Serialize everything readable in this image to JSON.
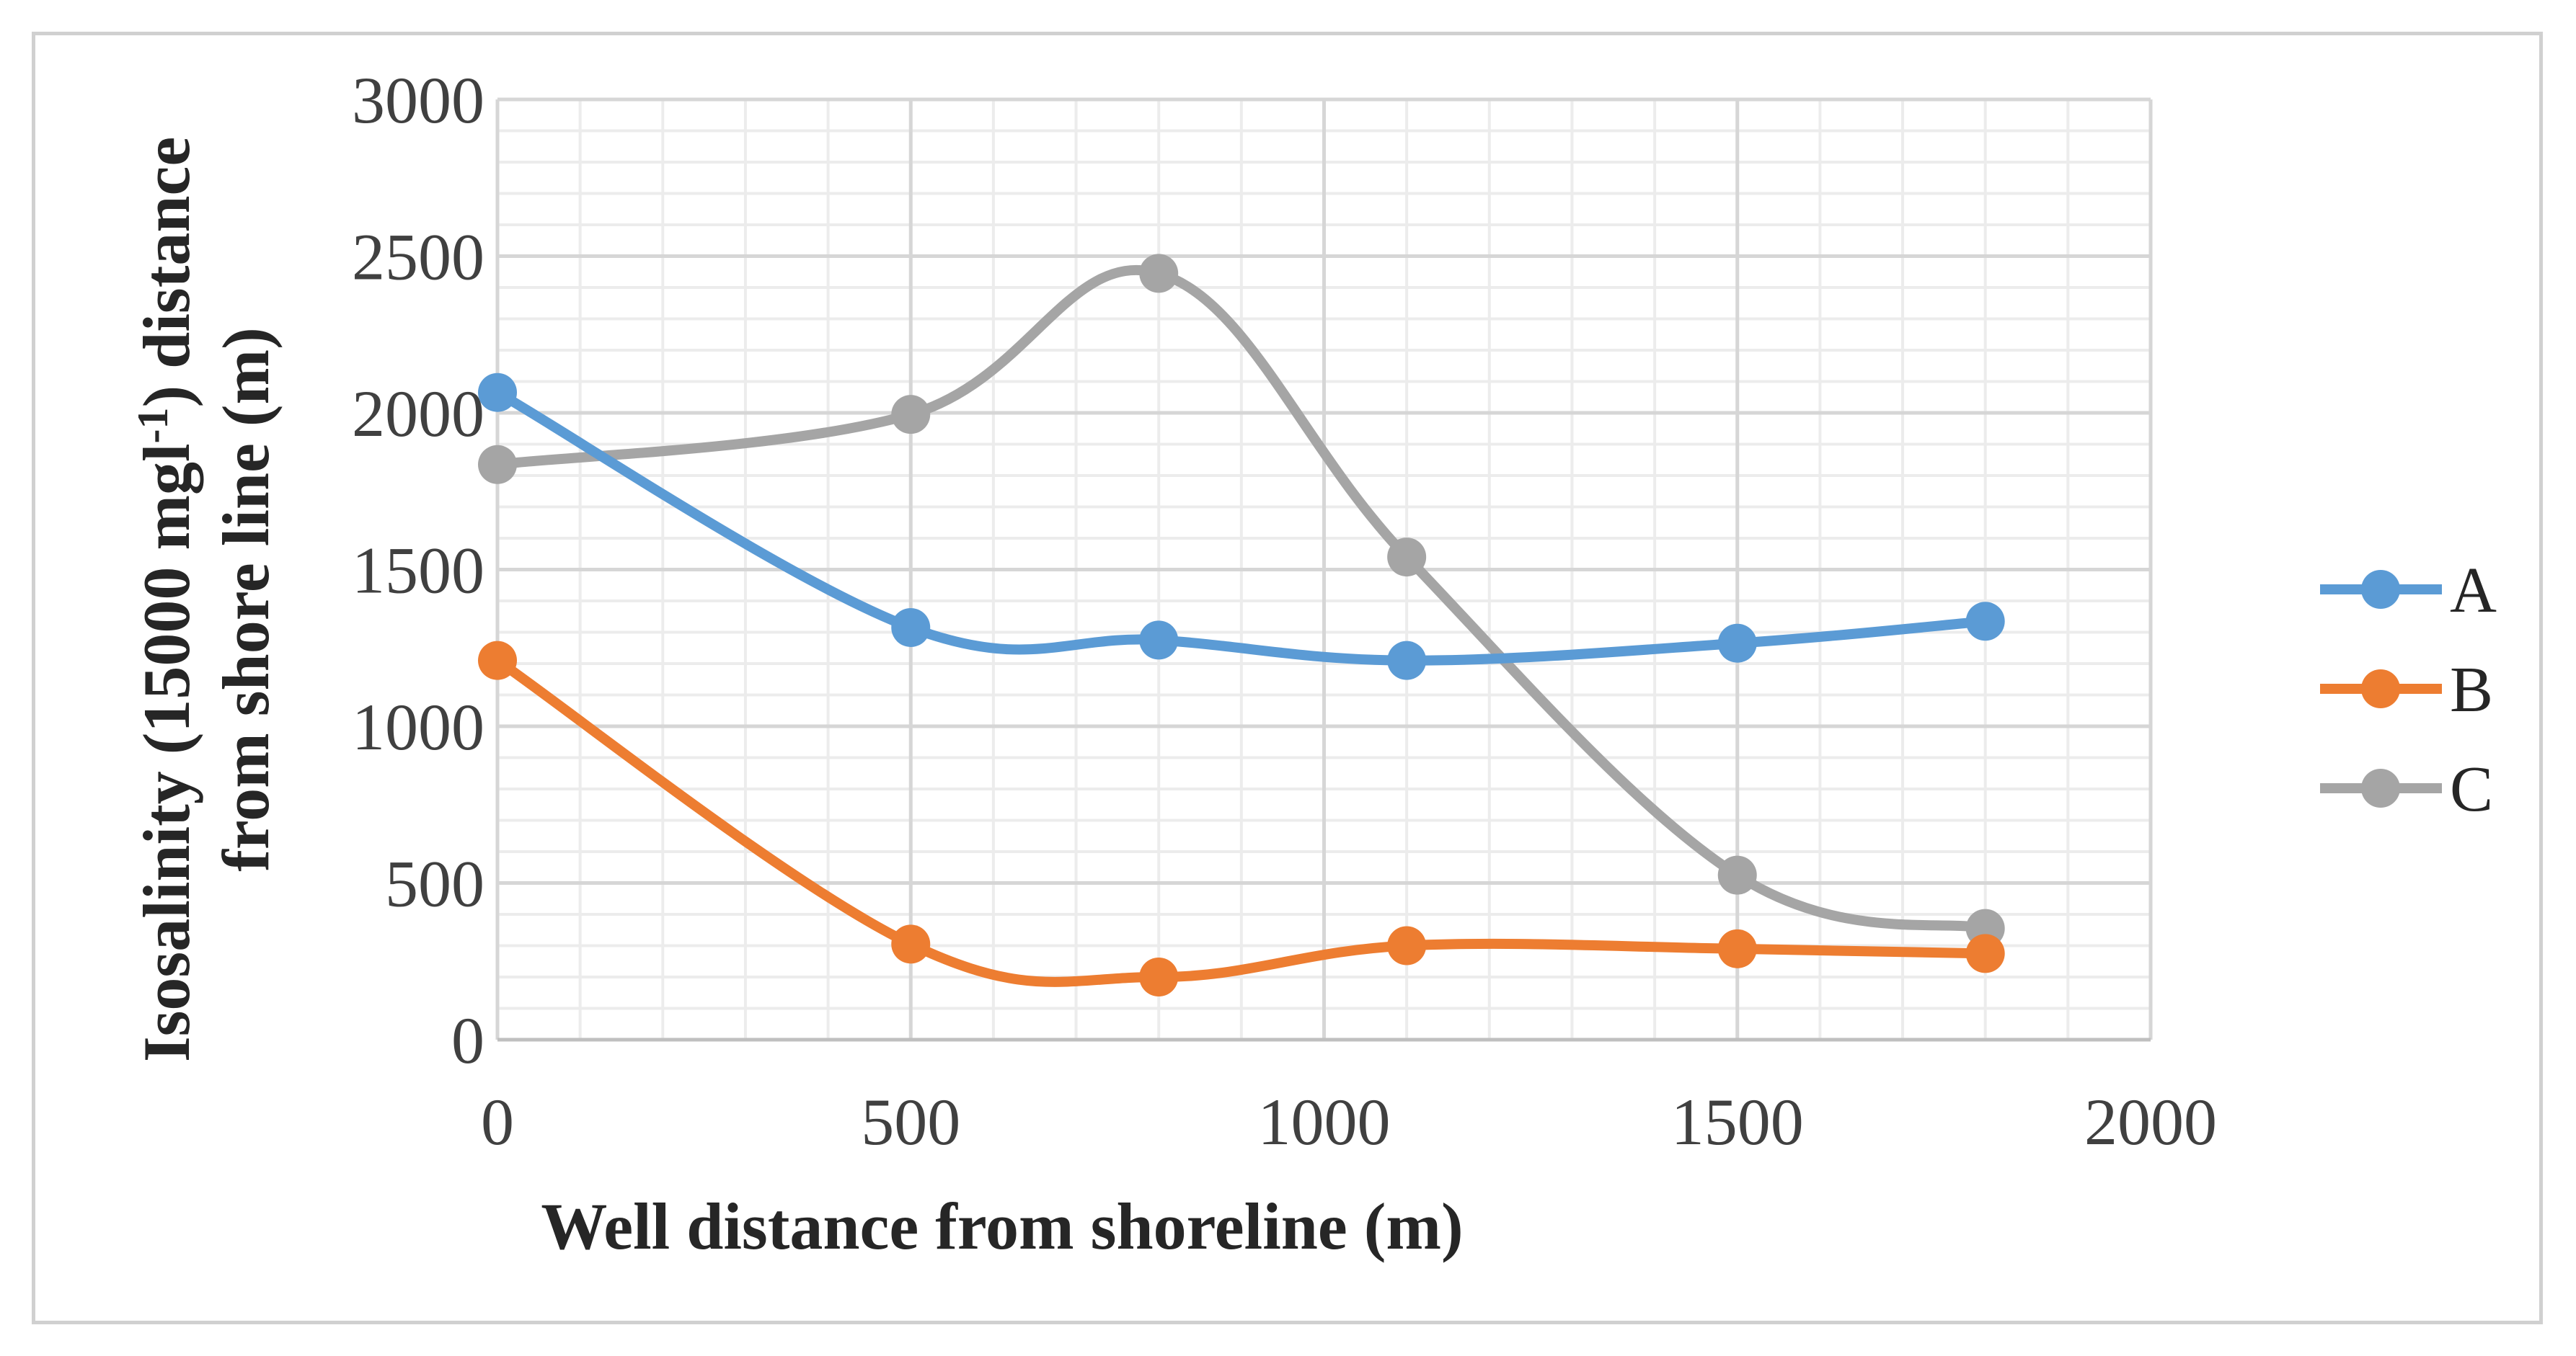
{
  "chart_data": {
    "type": "line",
    "title": "",
    "xlabel": "Well distance from shoreline (m)",
    "ylabel": {
      "line1_prefix": "Isosalinity (15000 mgl",
      "line1_sup": "-1",
      "line1_suffix": ") distance",
      "line2": "from shore line (m)"
    },
    "xlim": [
      0,
      2000
    ],
    "ylim": [
      0,
      3000
    ],
    "x_ticks": [
      "0",
      "500",
      "1000",
      "1500",
      "2000"
    ],
    "y_ticks": [
      "0",
      "500",
      "1000",
      "1500",
      "2000",
      "2500",
      "3000"
    ],
    "x": [
      0,
      500,
      800,
      1100,
      1500,
      1800
    ],
    "series": [
      {
        "name": "A",
        "color": "#5b9bd5",
        "values": [
          2065,
          1315,
          1275,
          1210,
          1265,
          1335
        ]
      },
      {
        "name": "B",
        "color": "#ed7d31",
        "values": [
          1210,
          305,
          200,
          300,
          290,
          275
        ]
      },
      {
        "name": "C",
        "color": "#a5a5a5",
        "values": [
          1835,
          1995,
          2445,
          1540,
          525,
          355
        ]
      }
    ],
    "grid": true,
    "smooth": true,
    "legend_position": "right"
  }
}
